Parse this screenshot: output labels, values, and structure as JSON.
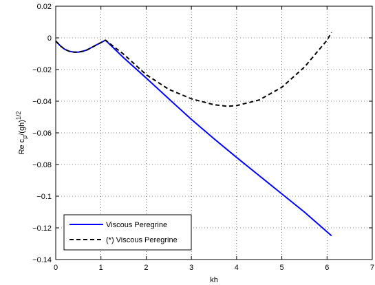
{
  "chart_data": {
    "type": "line",
    "xlabel": "kh",
    "ylabel": {
      "base": "Re c",
      "sub": "p",
      "mid": "/(gh)",
      "sup": "1/2"
    },
    "xlim": [
      0,
      7
    ],
    "ylim": [
      -0.14,
      0.02
    ],
    "xticks": [
      0,
      1,
      2,
      3,
      4,
      5,
      6,
      7
    ],
    "yticks": [
      0.02,
      0,
      -0.02,
      -0.04,
      -0.06,
      -0.08,
      -0.1,
      -0.12,
      -0.14
    ],
    "xtick_labels": [
      "0",
      "1",
      "2",
      "3",
      "4",
      "5",
      "6",
      "7"
    ],
    "ytick_labels": [
      "0.02",
      "0",
      "−0.02",
      "−0.04",
      "−0.06",
      "−0.08",
      "−0.1",
      "−0.12",
      "−0.14"
    ],
    "grid": true,
    "legend_position": "bottom-left",
    "series": [
      {
        "name": "Viscous Peregrine",
        "color": "#0000ff",
        "style": "solid",
        "x": [
          0.0,
          0.1,
          0.2,
          0.3,
          0.4,
          0.5,
          0.6,
          0.7,
          0.8,
          0.9,
          1.0,
          1.05,
          1.1,
          1.5,
          2.0,
          2.5,
          3.0,
          3.5,
          4.0,
          4.5,
          5.0,
          5.5,
          6.0,
          6.1
        ],
        "y": [
          -0.002,
          -0.005,
          -0.0072,
          -0.0085,
          -0.009,
          -0.009,
          -0.0085,
          -0.0075,
          -0.006,
          -0.0045,
          -0.003,
          -0.0022,
          -0.0015,
          -0.0125,
          -0.0253,
          -0.0385,
          -0.0515,
          -0.0637,
          -0.0755,
          -0.087,
          -0.0985,
          -0.11,
          -0.1225,
          -0.125
        ]
      },
      {
        "name": "(*) Viscous Peregrine",
        "color": "#000000",
        "style": "dashed",
        "x": [
          0.0,
          0.1,
          0.2,
          0.3,
          0.4,
          0.5,
          0.6,
          0.7,
          0.8,
          0.9,
          1.0,
          1.05,
          1.1,
          1.5,
          2.0,
          2.5,
          3.0,
          3.5,
          3.8,
          4.0,
          4.5,
          5.0,
          5.5,
          6.0,
          6.1
        ],
        "y": [
          -0.002,
          -0.005,
          -0.0072,
          -0.0085,
          -0.009,
          -0.009,
          -0.0085,
          -0.0075,
          -0.006,
          -0.0045,
          -0.003,
          -0.0022,
          -0.0015,
          -0.0103,
          -0.0232,
          -0.0325,
          -0.0385,
          -0.0422,
          -0.0432,
          -0.0428,
          -0.0392,
          -0.0312,
          -0.0185,
          -0.0015,
          0.0035
        ]
      }
    ]
  }
}
